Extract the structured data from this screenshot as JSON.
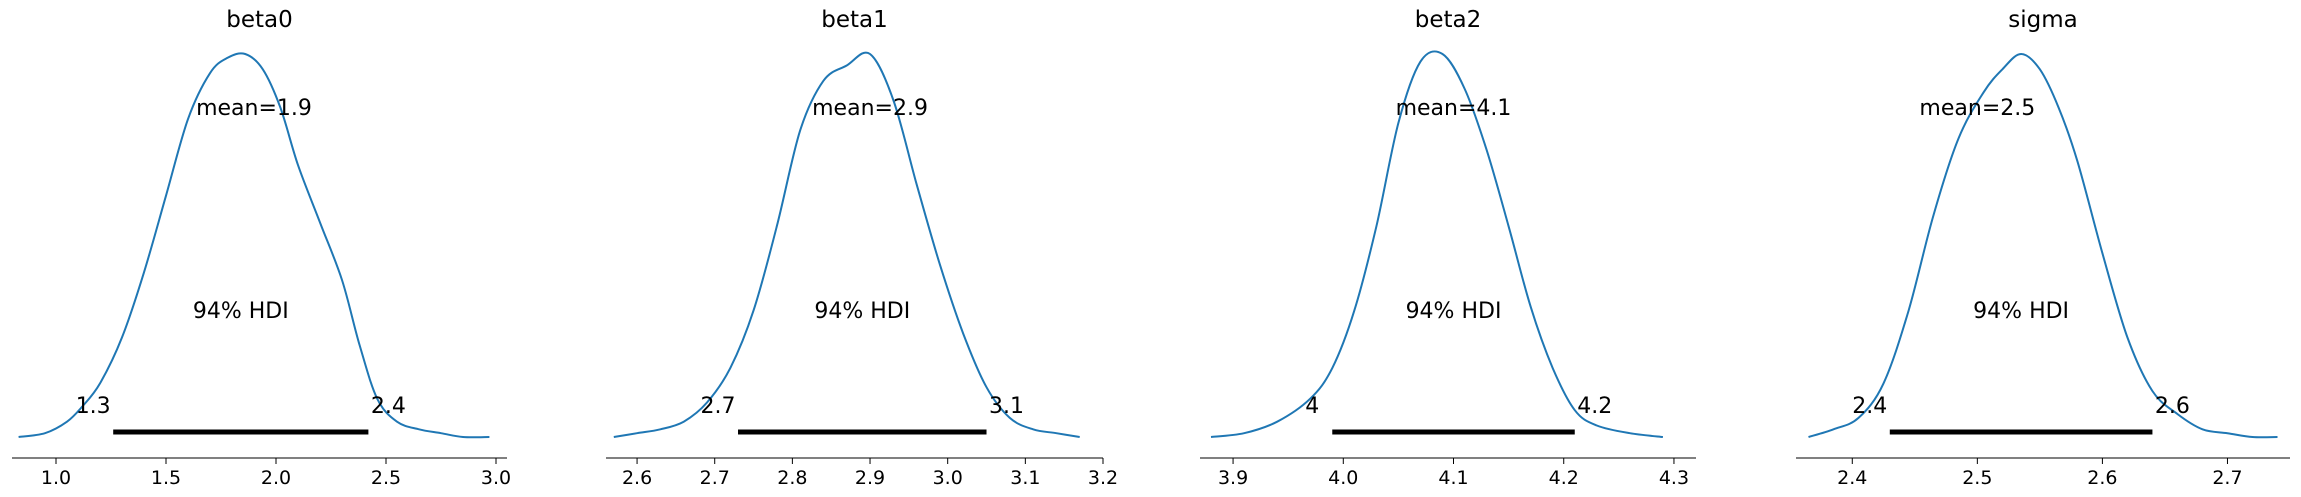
{
  "chart_data": [
    {
      "type": "line",
      "title": "beta0",
      "mean": 1.9,
      "mean_label": "mean=1.9",
      "hdi_label": "94% HDI",
      "hdi": [
        1.26,
        2.42
      ],
      "hdi_labels": [
        "1.3",
        "2.4"
      ],
      "xlim": [
        0.8,
        3.05
      ],
      "xticks": [
        1.0,
        1.5,
        2.0,
        2.5,
        3.0
      ],
      "xtick_labels": [
        "1.0",
        "1.5",
        "2.0",
        "2.5",
        "3.0"
      ],
      "density": {
        "x": [
          0.83,
          0.95,
          1.05,
          1.12,
          1.2,
          1.3,
          1.4,
          1.5,
          1.6,
          1.7,
          1.78,
          1.86,
          1.94,
          2.02,
          2.1,
          2.2,
          2.3,
          2.38,
          2.46,
          2.55,
          2.65,
          2.75,
          2.85,
          2.97
        ],
        "y": [
          0.0,
          0.01,
          0.04,
          0.08,
          0.14,
          0.26,
          0.43,
          0.63,
          0.83,
          0.95,
          0.99,
          1.0,
          0.96,
          0.86,
          0.71,
          0.56,
          0.41,
          0.24,
          0.1,
          0.04,
          0.02,
          0.01,
          0.0,
          0.0
        ]
      }
    },
    {
      "type": "line",
      "title": "beta1",
      "mean": 2.9,
      "mean_label": "mean=2.9",
      "hdi_label": "94% HDI",
      "hdi": [
        2.73,
        3.05
      ],
      "hdi_labels": [
        "2.7",
        "3.1"
      ],
      "xlim": [
        2.56,
        3.2
      ],
      "xticks": [
        2.6,
        2.7,
        2.8,
        2.9,
        3.0,
        3.1,
        3.2
      ],
      "xtick_labels": [
        "2.6",
        "2.7",
        "2.8",
        "2.9",
        "3.0",
        "3.1",
        "3.2"
      ],
      "density": {
        "x": [
          2.57,
          2.6,
          2.63,
          2.66,
          2.69,
          2.72,
          2.75,
          2.78,
          2.81,
          2.84,
          2.87,
          2.9,
          2.93,
          2.96,
          2.99,
          3.02,
          3.05,
          3.08,
          3.11,
          3.14,
          3.17
        ],
        "y": [
          0.0,
          0.01,
          0.02,
          0.04,
          0.09,
          0.18,
          0.33,
          0.55,
          0.8,
          0.93,
          0.97,
          1.0,
          0.88,
          0.66,
          0.45,
          0.27,
          0.13,
          0.05,
          0.02,
          0.01,
          0.0
        ]
      }
    },
    {
      "type": "line",
      "title": "beta2",
      "mean": 4.1,
      "mean_label": "mean=4.1",
      "hdi_label": "94% HDI",
      "hdi": [
        3.99,
        4.21
      ],
      "hdi_labels": [
        "4",
        "4.2"
      ],
      "xlim": [
        3.87,
        4.32
      ],
      "xticks": [
        3.9,
        4.0,
        4.1,
        4.2,
        4.3
      ],
      "xtick_labels": [
        "3.9",
        "4.0",
        "4.1",
        "4.2",
        "4.3"
      ],
      "density": {
        "x": [
          3.88,
          3.91,
          3.94,
          3.97,
          3.99,
          4.01,
          4.03,
          4.05,
          4.07,
          4.09,
          4.11,
          4.13,
          4.15,
          4.17,
          4.19,
          4.21,
          4.23,
          4.26,
          4.29
        ],
        "y": [
          0.0,
          0.01,
          0.04,
          0.1,
          0.18,
          0.33,
          0.55,
          0.82,
          0.98,
          1.0,
          0.91,
          0.75,
          0.55,
          0.34,
          0.18,
          0.07,
          0.03,
          0.01,
          0.0
        ]
      }
    },
    {
      "type": "line",
      "title": "sigma",
      "mean": 2.5,
      "mean_label": "mean=2.5",
      "hdi_label": "94% HDI",
      "hdi": [
        2.43,
        2.64
      ],
      "hdi_labels": [
        "2.4",
        "2.6"
      ],
      "xlim": [
        2.355,
        2.75
      ],
      "xticks": [
        2.4,
        2.5,
        2.6,
        2.7
      ],
      "xtick_labels": [
        "2.4",
        "2.5",
        "2.6",
        "2.7"
      ],
      "density": {
        "x": [
          2.365,
          2.385,
          2.405,
          2.425,
          2.445,
          2.465,
          2.485,
          2.505,
          2.52,
          2.535,
          2.55,
          2.565,
          2.58,
          2.6,
          2.62,
          2.64,
          2.66,
          2.68,
          2.7,
          2.72,
          2.74
        ],
        "y": [
          0.0,
          0.02,
          0.05,
          0.14,
          0.33,
          0.58,
          0.78,
          0.9,
          0.96,
          1.0,
          0.96,
          0.86,
          0.72,
          0.48,
          0.26,
          0.12,
          0.06,
          0.02,
          0.01,
          0.0,
          0.0
        ]
      }
    }
  ]
}
